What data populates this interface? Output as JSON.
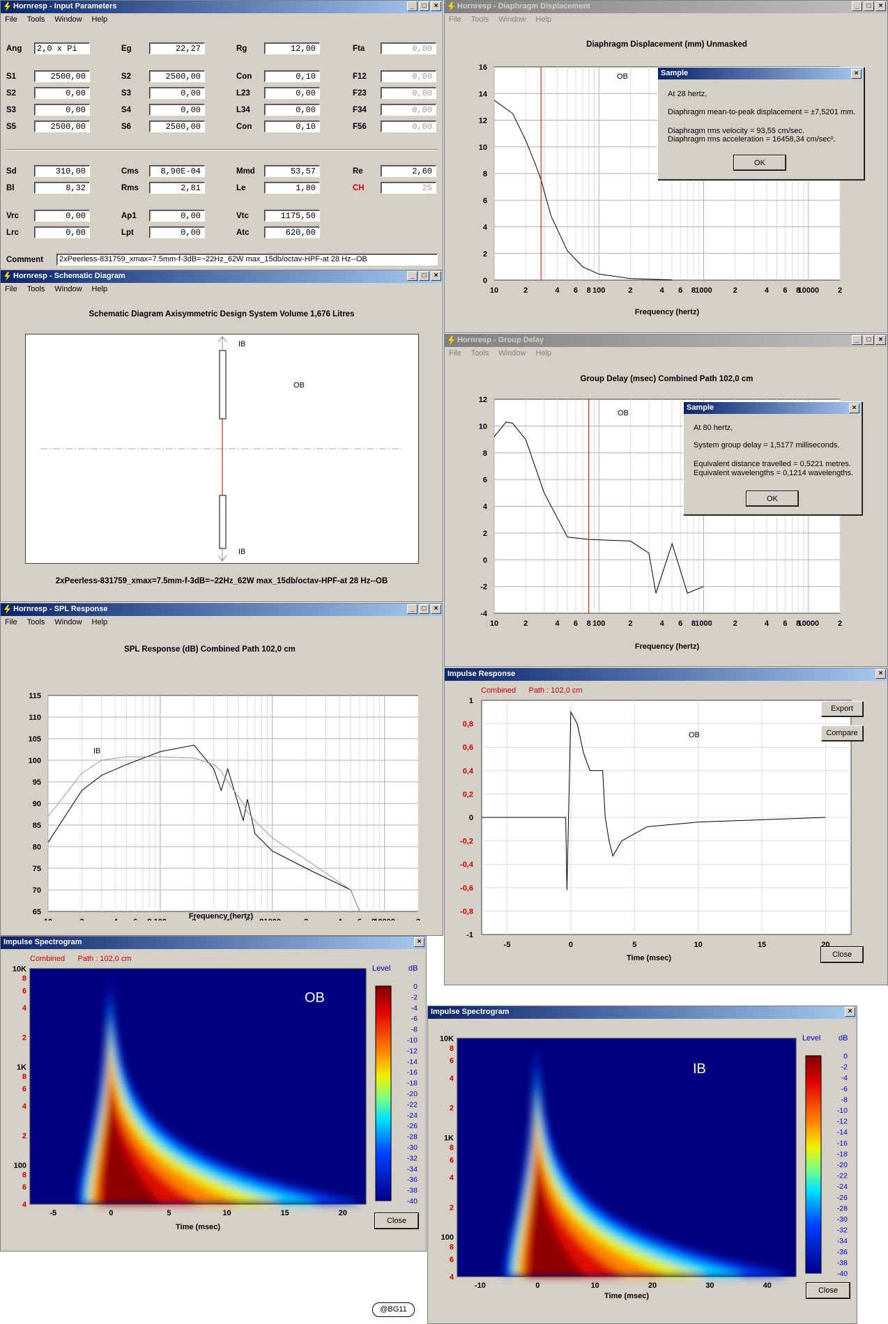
{
  "menu": {
    "file": "File",
    "tools": "Tools",
    "window": "Window",
    "help": "Help"
  },
  "input": {
    "title": "Hornresp - Input Parameters",
    "fields": [
      {
        "label": "Ang",
        "value": "2,0 x Pi",
        "col": 0,
        "row": 0
      },
      {
        "label": "Eg",
        "value": "22,27",
        "col": 1,
        "row": 0
      },
      {
        "label": "Rg",
        "value": "12,00",
        "col": 2,
        "row": 0
      },
      {
        "label": "Fta",
        "value": "0,00",
        "col": 3,
        "row": 0,
        "dis": true
      },
      {
        "label": "S1",
        "value": "2500,00",
        "col": 0,
        "row": 1
      },
      {
        "label": "S2",
        "value": "2500,00",
        "col": 1,
        "row": 1
      },
      {
        "label": "Con",
        "value": "0,10",
        "col": 2,
        "row": 1
      },
      {
        "label": "F12",
        "value": "0,00",
        "col": 3,
        "row": 1,
        "dis": true
      },
      {
        "label": "S2",
        "value": "0,00",
        "col": 0,
        "row": 2
      },
      {
        "label": "S3",
        "value": "0,00",
        "col": 1,
        "row": 2
      },
      {
        "label": "L23",
        "value": "0,00",
        "col": 2,
        "row": 2
      },
      {
        "label": "F23",
        "value": "0,00",
        "col": 3,
        "row": 2,
        "dis": true
      },
      {
        "label": "S3",
        "value": "0,00",
        "col": 0,
        "row": 3
      },
      {
        "label": "S4",
        "value": "0,00",
        "col": 1,
        "row": 3
      },
      {
        "label": "L34",
        "value": "0,00",
        "col": 2,
        "row": 3
      },
      {
        "label": "F34",
        "value": "0,00",
        "col": 3,
        "row": 3,
        "dis": true
      },
      {
        "label": "S5",
        "value": "2500,00",
        "col": 0,
        "row": 4
      },
      {
        "label": "S6",
        "value": "2500,00",
        "col": 1,
        "row": 4
      },
      {
        "label": "Con",
        "value": "0,10",
        "col": 2,
        "row": 4
      },
      {
        "label": "F56",
        "value": "0,00",
        "col": 3,
        "row": 4,
        "dis": true
      },
      {
        "label": "Sd",
        "value": "310,00",
        "col": 0,
        "row": 5
      },
      {
        "label": "Cms",
        "value": "8,90E-04",
        "col": 1,
        "row": 5
      },
      {
        "label": "Mmd",
        "value": "53,57",
        "col": 2,
        "row": 5
      },
      {
        "label": "Re",
        "value": "2,60",
        "col": 3,
        "row": 5
      },
      {
        "label": "Bl",
        "value": "8,32",
        "col": 0,
        "row": 6
      },
      {
        "label": "Rms",
        "value": "2,81",
        "col": 1,
        "row": 6
      },
      {
        "label": "Le",
        "value": "1,80",
        "col": 2,
        "row": 6
      },
      {
        "label": "CH",
        "value": "2S",
        "col": 3,
        "row": 6,
        "dis": true,
        "red": true
      },
      {
        "label": "Vrc",
        "value": "0,00",
        "col": 0,
        "row": 7
      },
      {
        "label": "Ap1",
        "value": "0,00",
        "col": 1,
        "row": 7
      },
      {
        "label": "Vtc",
        "value": "1175,50",
        "col": 2,
        "row": 7
      },
      {
        "label": "Lrc",
        "value": "0,00",
        "col": 0,
        "row": 8
      },
      {
        "label": "Lpt",
        "value": "0,00",
        "col": 1,
        "row": 8
      },
      {
        "label": "Atc",
        "value": "620,00",
        "col": 2,
        "row": 8
      }
    ],
    "comment_label": "Comment",
    "comment": "2xPeerless-831759_xmax=7.5mm-f-3dB=~22Hz_62W max_15db/octav-HPF-at 28 Hz--OB"
  },
  "schematic": {
    "title": "Hornresp - Schematic Diagram",
    "heading": "Schematic Diagram   Axisymmetric Design   System Volume 1,676 Litres",
    "ib_top": "IB",
    "ib_bottom": "IB",
    "ob": "OB",
    "caption": "2xPeerless-831759_xmax=7.5mm-f-3dB=~22Hz_62W max_15db/octav-HPF-at 28 Hz--OB"
  },
  "diaphragm": {
    "title": "Hornresp - Diaphragm Displacement",
    "heading": "Diaphragm Displacement (mm)   Unmasked",
    "xlabel": "Frequency (hertz)",
    "label": "OB",
    "yticks": [
      "16",
      "14",
      "12",
      "10",
      "8",
      "6",
      "4",
      "2",
      "0"
    ],
    "dialog": {
      "title": "Sample",
      "l1": "At 28 hertz,",
      "l2": "Diaphragm mean-to-peak displacement = ±7,5201 mm.",
      "l3": "Diaphragm rms velocity = 93,55 cm/sec.",
      "l4": "Diaphragm rms acceleration = 16458,34 cm/sec².",
      "ok": "OK"
    }
  },
  "groupdelay": {
    "title": "Hornresp - Group Delay",
    "heading": "Group Delay (msec)   Combined   Path 102,0 cm",
    "xlabel": "Frequency (hertz)",
    "label": "OB",
    "yticks": [
      "12",
      "10",
      "8",
      "6",
      "4",
      "2",
      "0",
      "-2",
      "-4"
    ],
    "dialog": {
      "title": "Sample",
      "l1": "At 80 hertz,",
      "l2": "System group delay = 1,5177 milliseconds.",
      "l3": "Equivalent distance travelled = 0,5221 metres.",
      "l4": "Equivalent wavelengths = 0,1214 wavelengths.",
      "ok": "OK"
    }
  },
  "spl": {
    "title": "Hornresp - SPL Response",
    "heading": "SPL Response (dB)   Combined   Path 102,0 cm",
    "xlabel": "Frequency (hertz)",
    "ib_label": "IB",
    "yticks": [
      "115",
      "110",
      "105",
      "100",
      "95",
      "90",
      "85",
      "80",
      "75",
      "70",
      "65"
    ]
  },
  "freq_ticks": [
    "10",
    "2",
    "4",
    "6",
    "8",
    "100",
    "2",
    "4",
    "6",
    "8",
    "1000",
    "2",
    "4",
    "6",
    "8",
    "10000",
    "2"
  ],
  "impulse": {
    "title": "Impulse Response",
    "sub_combined": "Combined",
    "sub_path": "Path : 102,0 cm",
    "label": "OB",
    "yticks": [
      "1",
      "0,8",
      "0,6",
      "0,4",
      "0,2",
      "0",
      "-0,2",
      "-0,4",
      "-0,6",
      "-0,8",
      "-1"
    ],
    "xticks": [
      "-5",
      "0",
      "5",
      "10",
      "15",
      "20"
    ],
    "xlabel": "Time (msec)",
    "export": "Export",
    "compare": "Compare",
    "close": "Close"
  },
  "spec_ob": {
    "title": "Impulse Spectrogram",
    "sub_combined": "Combined",
    "sub_path": "Path : 102,0 cm",
    "label": "OB",
    "xticks": [
      "-5",
      "0",
      "5",
      "10",
      "15",
      "20"
    ],
    "xlabel": "Time (msec)",
    "close": "Close"
  },
  "spec_ib": {
    "title": "Impulse Spectrogram",
    "label": "IB",
    "xticks": [
      "-10",
      "0",
      "10",
      "20",
      "30",
      "40"
    ],
    "xlabel": "Time (msec)",
    "close": "Close"
  },
  "spec_yticks": [
    "10K",
    "8",
    "6",
    "4",
    "2",
    "1K",
    "8",
    "6",
    "4",
    "2",
    "100",
    "8",
    "6",
    "4"
  ],
  "level_title": "Level",
  "level_unit": "dB",
  "level_ticks": [
    "0",
    "-2",
    "-4",
    "-6",
    "-8",
    "-10",
    "-12",
    "-14",
    "-16",
    "-18",
    "-20",
    "-22",
    "-24",
    "-26",
    "-28",
    "-30",
    "-32",
    "-34",
    "-36",
    "-38",
    "-40"
  ],
  "signature": "@BG11",
  "colors": {
    "title_active": "#0a246a",
    "title_inactive": "#808080",
    "marker": "#cc0000",
    "label_red": "#cc0000",
    "spec_bg": "#000080"
  },
  "chart_data": [
    {
      "type": "line",
      "title": "Diaphragm Displacement (mm)",
      "xlabel": "Frequency (hertz)",
      "xscale": "log",
      "xlim": [
        10,
        20000
      ],
      "ylim": [
        0,
        16
      ],
      "x": [
        10,
        15,
        20,
        25,
        28,
        35,
        50,
        70,
        100,
        200,
        500
      ],
      "series": [
        {
          "name": "OB",
          "values": [
            13.5,
            12.5,
            10.5,
            8.6,
            7.52,
            4.8,
            2.2,
            1.0,
            0.45,
            0.12,
            0.02
          ]
        }
      ],
      "marker_x": 28
    },
    {
      "type": "line",
      "title": "Group Delay (msec)",
      "xlabel": "Frequency (hertz)",
      "xscale": "log",
      "xlim": [
        10,
        20000
      ],
      "ylim": [
        -4,
        12
      ],
      "x": [
        10,
        13,
        15,
        20,
        30,
        50,
        80,
        200,
        300,
        350,
        500,
        700,
        1000
      ],
      "series": [
        {
          "name": "OB",
          "values": [
            9.2,
            10.3,
            10.2,
            9.0,
            5.0,
            1.7,
            1.52,
            1.4,
            0.5,
            -2.5,
            1.2,
            -2.5,
            -2.0
          ]
        }
      ],
      "marker_x": 80
    },
    {
      "type": "line",
      "title": "SPL Response (dB)",
      "xlabel": "Frequency (hertz)",
      "xscale": "log",
      "xlim": [
        10,
        20000
      ],
      "ylim": [
        65,
        115
      ],
      "x": [
        10,
        20,
        30,
        50,
        100,
        200,
        300,
        350,
        400,
        550,
        600,
        700,
        1000,
        2000,
        5000,
        6000
      ],
      "series": [
        {
          "name": "OB",
          "values": [
            81,
            93,
            96.5,
            99,
            102,
            103.5,
            98,
            93,
            98,
            86,
            91,
            83,
            79,
            75,
            70,
            65
          ]
        },
        {
          "name": "IB",
          "values": [
            87,
            97,
            100,
            100.8,
            100.8,
            100.5,
            99,
            97.5,
            95,
            90,
            88,
            86,
            82,
            77,
            70,
            65
          ]
        }
      ]
    },
    {
      "type": "line",
      "title": "Impulse Response",
      "xlabel": "Time (msec)",
      "xlim": [
        -7,
        22
      ],
      "ylim": [
        -1,
        1
      ],
      "x": [
        -7,
        -0.4,
        -0.3,
        0,
        0.5,
        1,
        1.5,
        2.5,
        2.7,
        3,
        3.3,
        4,
        6,
        10,
        15,
        20
      ],
      "series": [
        {
          "name": "OB",
          "values": [
            0,
            0,
            -0.62,
            0.9,
            0.8,
            0.55,
            0.4,
            0.4,
            0,
            -0.2,
            -0.33,
            -0.2,
            -0.08,
            -0.04,
            -0.02,
            0
          ]
        }
      ]
    },
    {
      "type": "heatmap",
      "title": "Impulse Spectrogram",
      "label": "OB",
      "xlabel": "Time (msec)",
      "xlim": [
        -7,
        22
      ],
      "ylim": [
        40,
        10000
      ],
      "zlim": [
        -40,
        0
      ]
    },
    {
      "type": "heatmap",
      "title": "Impulse Spectrogram",
      "label": "IB",
      "xlabel": "Time (msec)",
      "xlim": [
        -14,
        45
      ],
      "ylim": [
        40,
        10000
      ],
      "zlim": [
        -40,
        0
      ]
    }
  ]
}
